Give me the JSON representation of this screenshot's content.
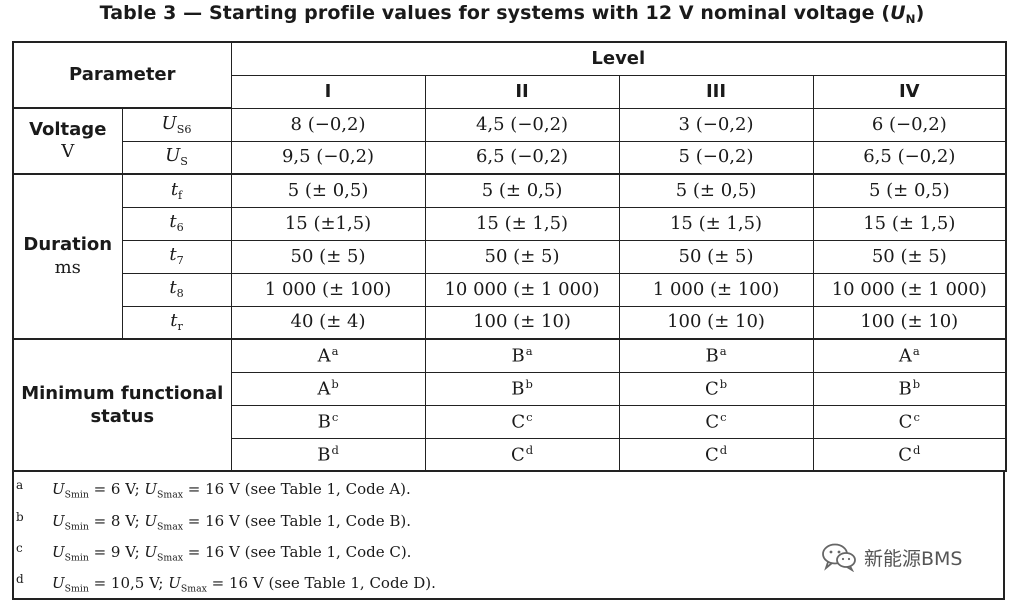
{
  "caption": {
    "prefix": "Table 3 — Starting profile values for systems with 12 V nominal voltage (",
    "sym": "U",
    "sub": "N",
    "suffix": ")"
  },
  "header": {
    "parameter": "Parameter",
    "level": "Level",
    "levels": [
      "I",
      "II",
      "III",
      "IV"
    ]
  },
  "groups": {
    "voltage": {
      "name": "Voltage",
      "unit": "V"
    },
    "duration": {
      "name": "Duration",
      "unit": "ms"
    },
    "status": {
      "name": "Minimum functional status"
    }
  },
  "rows": [
    {
      "sym": "U",
      "sub": "S6",
      "values": [
        "8 (−0,2)",
        "4,5 (−0,2)",
        "3 (−0,2)",
        "6 (−0,2)"
      ]
    },
    {
      "sym": "U",
      "sub": "S",
      "values": [
        "9,5 (−0,2)",
        "6,5 (−0,2)",
        "5 (−0,2)",
        "6,5 (−0,2)"
      ]
    },
    {
      "sym": "t",
      "sub": "f",
      "values": [
        "5 (± 0,5)",
        "5 (± 0,5)",
        "5 (± 0,5)",
        "5 (± 0,5)"
      ]
    },
    {
      "sym": "t",
      "sub": "6",
      "values": [
        "15 (±1,5)",
        "15 (± 1,5)",
        "15 (± 1,5)",
        "15 (± 1,5)"
      ]
    },
    {
      "sym": "t",
      "sub": "7",
      "values": [
        "50 (± 5)",
        "50 (± 5)",
        "50 (± 5)",
        "50 (± 5)"
      ]
    },
    {
      "sym": "t",
      "sub": "8",
      "values": [
        "1 000 (± 100)",
        "10 000 (± 1 000)",
        "1 000 (± 100)",
        "10 000 (± 1 000)"
      ]
    },
    {
      "sym": "t",
      "sub": "r",
      "values": [
        "40 (± 4)",
        "100 (± 10)",
        "100 (± 10)",
        "100 (± 10)"
      ]
    }
  ],
  "status_rows": [
    [
      {
        "v": "A",
        "n": "a"
      },
      {
        "v": "B",
        "n": "a"
      },
      {
        "v": "B",
        "n": "a"
      },
      {
        "v": "A",
        "n": "a"
      }
    ],
    [
      {
        "v": "A",
        "n": "b"
      },
      {
        "v": "B",
        "n": "b"
      },
      {
        "v": "C",
        "n": "b"
      },
      {
        "v": "B",
        "n": "b"
      }
    ],
    [
      {
        "v": "B",
        "n": "c"
      },
      {
        "v": "C",
        "n": "c"
      },
      {
        "v": "C",
        "n": "c"
      },
      {
        "v": "C",
        "n": "c"
      }
    ],
    [
      {
        "v": "B",
        "n": "d"
      },
      {
        "v": "C",
        "n": "d"
      },
      {
        "v": "C",
        "n": "d"
      },
      {
        "v": "C",
        "n": "d"
      }
    ]
  ],
  "footnotes": [
    {
      "mark": "a",
      "min": "6 V",
      "max": "16 V",
      "ref": "(see Table 1, Code A)."
    },
    {
      "mark": "b",
      "min": "8 V",
      "max": "16 V",
      "ref": "(see Table 1, Code B)."
    },
    {
      "mark": "c",
      "min": "9 V",
      "max": "16 V",
      "ref": "(see Table 1, Code C)."
    },
    {
      "mark": "d",
      "min": "10,5 V",
      "max": "16 V",
      "ref": "(see Table 1, Code D)."
    }
  ],
  "footnote_symbols": {
    "sym": "U",
    "min_sub": "Smin",
    "max_sub": "Smax"
  },
  "watermark": {
    "text": "新能源BMS",
    "icon": "wechat-icon"
  }
}
